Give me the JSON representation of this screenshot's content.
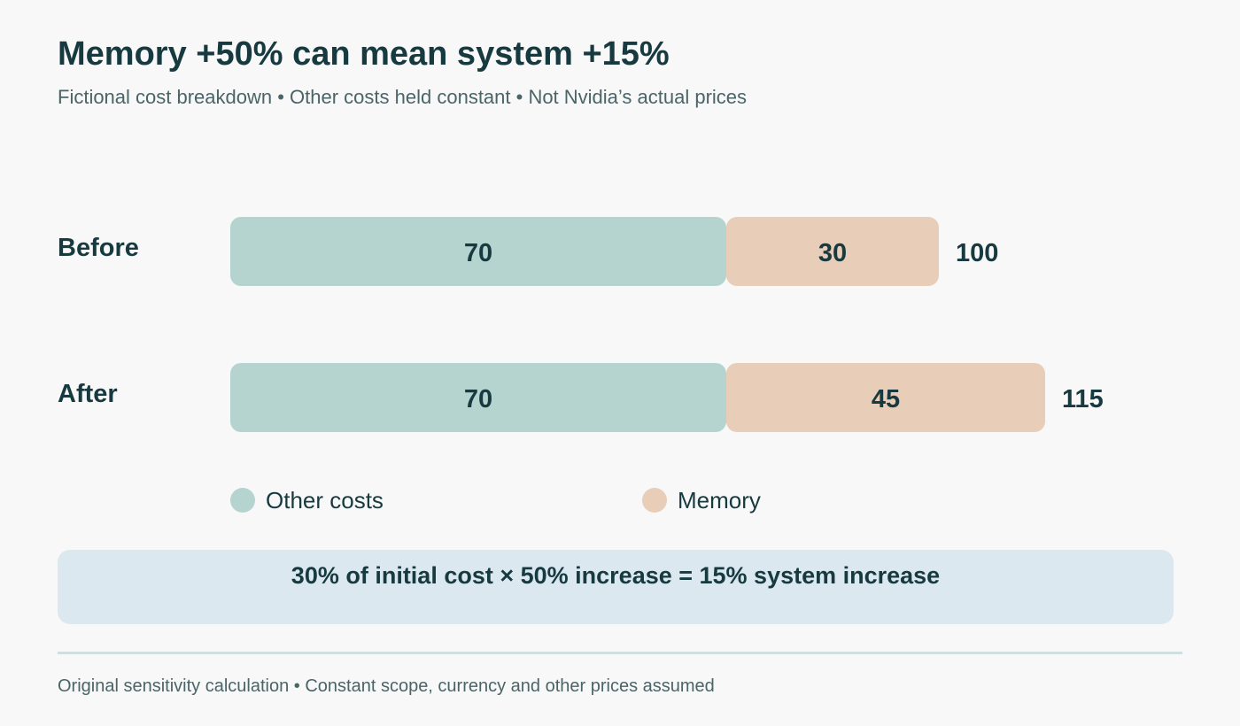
{
  "title": "Memory +50% can mean system +15%",
  "subtitle": "Fictional cost breakdown • Other costs held constant • Not Nvidia’s actual prices",
  "chart_data": {
    "type": "bar",
    "orientation": "horizontal",
    "stacked": true,
    "categories": [
      "Before",
      "After"
    ],
    "series": [
      {
        "name": "Other costs",
        "color": "#b5d4cf",
        "values": [
          70,
          70
        ]
      },
      {
        "name": "Memory",
        "color": "#e8cdb8",
        "values": [
          30,
          45
        ]
      }
    ],
    "totals": [
      "100",
      "115"
    ],
    "value_labels": [
      [
        "70",
        "70"
      ],
      [
        "30",
        "45"
      ]
    ],
    "grid": false,
    "legend_position": "bottom"
  },
  "callout": "30% of initial cost × 50% increase = 15% system increase",
  "footer": "Original sensitivity calculation • Constant scope, currency and other prices assumed"
}
